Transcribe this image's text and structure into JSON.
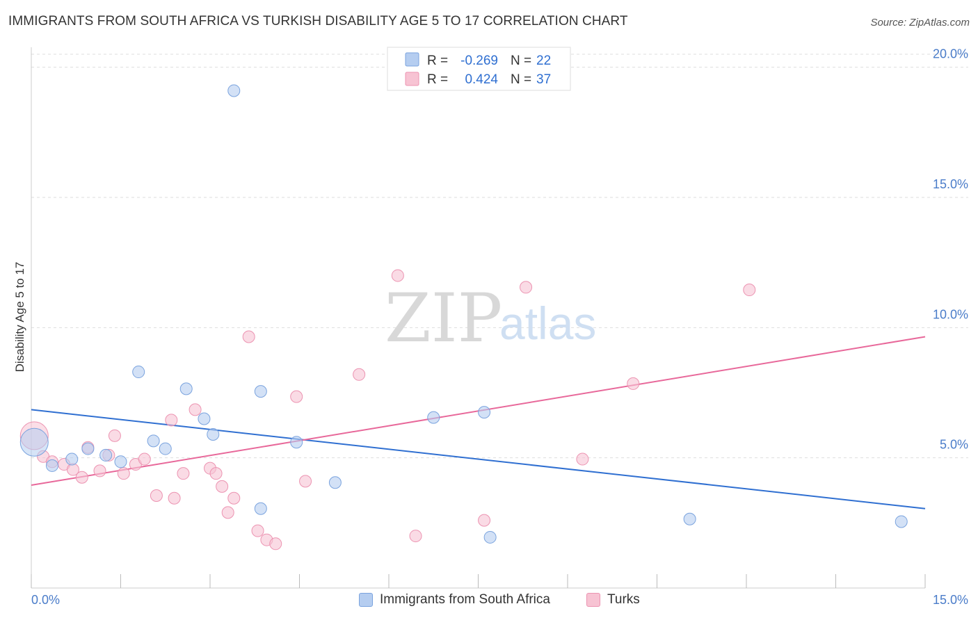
{
  "title": "IMMIGRANTS FROM SOUTH AFRICA VS TURKISH DISABILITY AGE 5 TO 17 CORRELATION CHART",
  "source": "Source: ZipAtlas.com",
  "watermark": {
    "part1": "ZIP",
    "part2": "atlas"
  },
  "colors": {
    "blue_fill": "#b5cdf0",
    "blue_stroke": "#7aa3de",
    "blue_line": "#2f6fd1",
    "pink_fill": "#f7c3d3",
    "pink_stroke": "#ec93b1",
    "pink_line": "#e8689a",
    "tick_text": "#4a7cc9",
    "grid": "#dddddd"
  },
  "stats": {
    "rows": [
      {
        "r_label": "R =",
        "r_value": "-0.269",
        "n_label": "N =",
        "n_value": "22"
      },
      {
        "r_label": "R =",
        "r_value": "0.424",
        "n_label": "N =",
        "n_value": "37"
      }
    ]
  },
  "legend": {
    "blue_label": "Immigrants from South Africa",
    "pink_label": "Turks"
  },
  "chart_data": {
    "type": "scatter",
    "title": "IMMIGRANTS FROM SOUTH AFRICA VS TURKISH DISABILITY AGE 5 TO 17 CORRELATION CHART",
    "xlabel": "",
    "ylabel": "Disability Age 5 to 17",
    "xlim": [
      0,
      15
    ],
    "ylim": [
      0,
      20.5
    ],
    "x_tick_labels": [
      "0.0%",
      "15.0%"
    ],
    "y_ticks": [
      5,
      10,
      15,
      20
    ],
    "y_tick_labels": [
      "5.0%",
      "10.0%",
      "15.0%",
      "20.0%"
    ],
    "grid": true,
    "legend_position": "bottom-center",
    "series": [
      {
        "name": "Immigrants from South Africa",
        "color": "#7aa3de",
        "points": [
          [
            0.05,
            5.6
          ],
          [
            0.35,
            4.7
          ],
          [
            0.68,
            4.95
          ],
          [
            0.95,
            5.35
          ],
          [
            1.25,
            5.1
          ],
          [
            1.5,
            4.85
          ],
          [
            1.8,
            8.3
          ],
          [
            2.05,
            5.65
          ],
          [
            2.25,
            5.35
          ],
          [
            2.6,
            7.65
          ],
          [
            2.9,
            6.5
          ],
          [
            3.05,
            5.9
          ],
          [
            3.4,
            19.1
          ],
          [
            3.85,
            3.05
          ],
          [
            3.85,
            7.55
          ],
          [
            4.45,
            5.6
          ],
          [
            5.1,
            4.05
          ],
          [
            6.75,
            6.55
          ],
          [
            7.6,
            6.75
          ],
          [
            7.7,
            1.95
          ],
          [
            11.05,
            2.65
          ],
          [
            14.6,
            2.55
          ]
        ],
        "trend": {
          "x": [
            0,
            15
          ],
          "y": [
            6.85,
            3.05
          ]
        }
      },
      {
        "name": "Turks",
        "color": "#ec93b1",
        "points": [
          [
            0.05,
            5.85
          ],
          [
            0.2,
            5.05
          ],
          [
            0.35,
            4.85
          ],
          [
            0.55,
            4.75
          ],
          [
            0.7,
            4.55
          ],
          [
            0.85,
            4.25
          ],
          [
            0.95,
            5.4
          ],
          [
            1.15,
            4.5
          ],
          [
            1.3,
            5.1
          ],
          [
            1.4,
            5.85
          ],
          [
            1.55,
            4.4
          ],
          [
            1.75,
            4.75
          ],
          [
            1.9,
            4.95
          ],
          [
            2.1,
            3.55
          ],
          [
            2.35,
            6.45
          ],
          [
            2.4,
            3.45
          ],
          [
            2.55,
            4.4
          ],
          [
            2.75,
            6.85
          ],
          [
            3.0,
            4.6
          ],
          [
            3.1,
            4.4
          ],
          [
            3.2,
            3.9
          ],
          [
            3.3,
            2.9
          ],
          [
            3.4,
            3.45
          ],
          [
            3.65,
            9.65
          ],
          [
            3.8,
            2.2
          ],
          [
            3.95,
            1.85
          ],
          [
            4.1,
            1.7
          ],
          [
            4.45,
            7.35
          ],
          [
            4.6,
            4.1
          ],
          [
            5.5,
            8.2
          ],
          [
            6.15,
            12.0
          ],
          [
            6.45,
            2.0
          ],
          [
            7.6,
            2.6
          ],
          [
            8.3,
            11.55
          ],
          [
            9.25,
            4.95
          ],
          [
            10.1,
            7.85
          ],
          [
            12.05,
            11.45
          ]
        ],
        "trend": {
          "x": [
            0,
            15
          ],
          "y": [
            3.95,
            9.65
          ]
        }
      }
    ]
  }
}
